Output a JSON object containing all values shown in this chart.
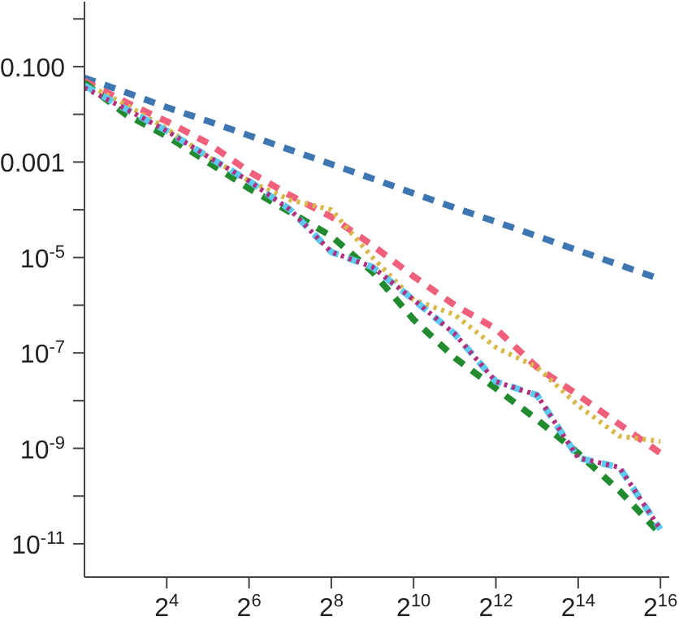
{
  "chart_data": {
    "type": "line",
    "log": "xy",
    "legend": false,
    "marker": "none",
    "x": [
      4,
      8,
      16,
      32,
      64,
      128,
      256,
      512,
      1024,
      2048,
      4096,
      8192,
      16384,
      32768,
      65536
    ],
    "xlim": [
      4,
      76000
    ],
    "xticks": [
      {
        "value": 16,
        "label": "2$^{4}$"
      },
      {
        "value": 64,
        "label": "2$^{6}$"
      },
      {
        "value": 256,
        "label": "2$^{8}$"
      },
      {
        "value": 1024,
        "label": "2$^{10}$"
      },
      {
        "value": 4096,
        "label": "2$^{12}$"
      },
      {
        "value": 16384,
        "label": "2$^{14}$"
      },
      {
        "value": 65536,
        "label": "2$^{16}$"
      }
    ],
    "ylim": [
      2e-12,
      2.3
    ],
    "yticks": [
      {
        "value": 1,
        "label": null
      },
      {
        "value": 0.1,
        "label": "0.100"
      },
      {
        "value": 0.01,
        "label": null
      },
      {
        "value": 0.001,
        "label": "0.001"
      },
      {
        "value": 0.0001,
        "label": null
      },
      {
        "value": 1e-05,
        "label": "10$^{-5}$"
      },
      {
        "value": 1e-06,
        "label": null
      },
      {
        "value": 1e-07,
        "label": "10$^{-7}$"
      },
      {
        "value": 1e-08,
        "label": null
      },
      {
        "value": 1e-09,
        "label": "10$^{-9}$"
      },
      {
        "value": 1e-10,
        "label": null
      },
      {
        "value": 1e-11,
        "label": "10$^{-11}$"
      }
    ],
    "series": [
      {
        "color": "#3d76b0",
        "line_style": "dashed",
        "values": [
          0.058,
          0.029,
          0.014,
          0.0072,
          0.0036,
          0.0018,
          0.0009,
          0.00045,
          0.00022,
          0.00011,
          5.6e-05,
          2.8e-05,
          1.4e-05,
          7e-06,
          3.5e-06
        ]
      },
      {
        "color": "#f0607a",
        "line_style": "dashed",
        "values": [
          0.05,
          0.018,
          0.0071,
          0.0025,
          0.00063,
          0.0002,
          7.1e-05,
          1.8e-05,
          4e-06,
          1e-06,
          3.2e-07,
          5e-08,
          1.3e-08,
          3.2e-09,
          7.9e-10
        ]
      },
      {
        "color": "#d9b84a",
        "line_style": "dotted",
        "values": [
          0.045,
          0.016,
          0.005,
          0.0013,
          0.0004,
          0.00016,
          0.0001,
          1e-05,
          1.3e-06,
          6.3e-07,
          1.3e-07,
          5e-08,
          7.9e-09,
          1.8e-09,
          1.4e-09
        ]
      },
      {
        "color": "#228b30",
        "line_style": "dashed",
        "values": [
          0.046,
          0.01,
          0.0035,
          0.001,
          0.00028,
          8.9e-05,
          2.8e-05,
          5e-06,
          5e-07,
          7.9e-08,
          1.8e-08,
          4e-09,
          7.9e-10,
          1.3e-10,
          1.6e-11
        ]
      },
      {
        "color": "#5ccbf0",
        "line_style": "dashed",
        "values": [
          0.04,
          0.013,
          0.0045,
          0.0013,
          0.0004,
          0.0001,
          1.3e-05,
          6.3e-06,
          1.3e-06,
          2.5e-07,
          2.5e-08,
          1.3e-08,
          6.3e-10,
          4e-10,
          2e-11
        ]
      },
      {
        "color": "#b0307f",
        "line_style": "dotted",
        "values": [
          0.036,
          0.013,
          0.0045,
          0.0013,
          0.0004,
          0.0001,
          1.3e-05,
          6.3e-06,
          1.3e-06,
          2.5e-07,
          2.5e-08,
          1.3e-08,
          6.3e-10,
          4e-10,
          2e-11
        ]
      }
    ]
  }
}
